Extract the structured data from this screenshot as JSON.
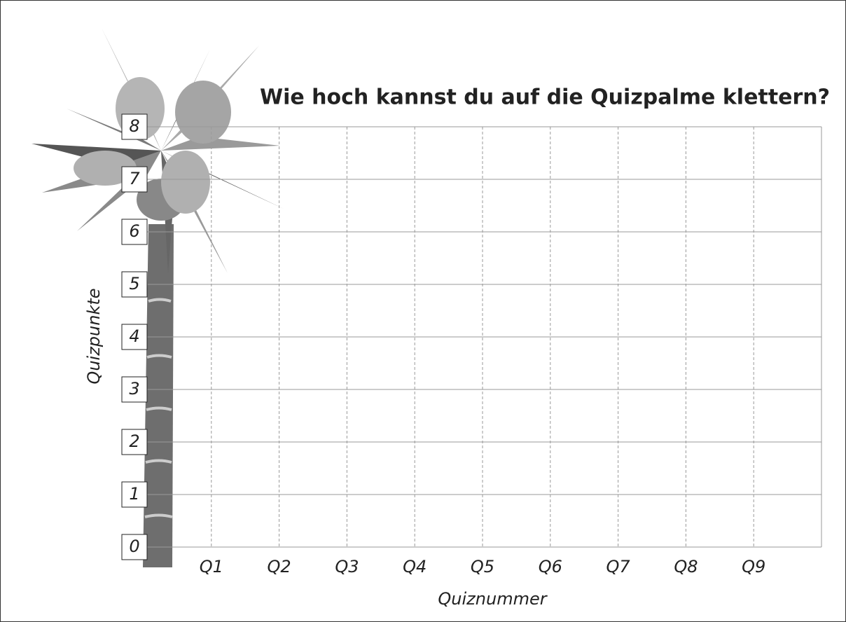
{
  "chart_data": {
    "type": "line",
    "title": "Wie hoch kannst du auf die Quizpalme klettern?",
    "x_label": "Quiznummer",
    "y_label": "Quizpunkte",
    "categories": [
      "Q1",
      "Q2",
      "Q3",
      "Q4",
      "Q5",
      "Q6",
      "Q7",
      "Q8",
      "Q9"
    ],
    "ylim": [
      0,
      8
    ],
    "yticks": [
      0,
      1,
      2,
      3,
      4,
      5,
      6,
      7,
      8
    ],
    "grid": true
  }
}
